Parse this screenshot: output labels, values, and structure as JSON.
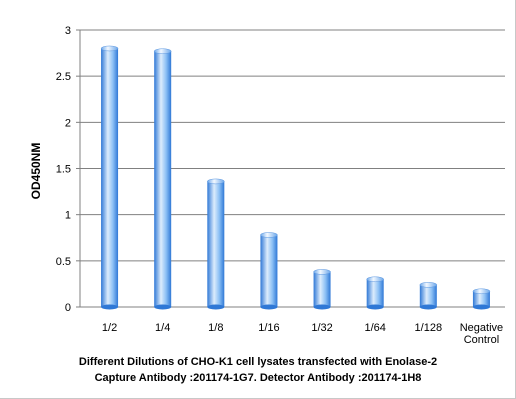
{
  "chart_data": {
    "type": "bar",
    "categories": [
      "1/2",
      "1/4",
      "1/8",
      "1/16",
      "1/32",
      "1/64",
      "1/128",
      "Negative Control"
    ],
    "category_lines": [
      [
        "1/2"
      ],
      [
        "1/4"
      ],
      [
        "1/8"
      ],
      [
        "1/16"
      ],
      [
        "1/32"
      ],
      [
        "1/64"
      ],
      [
        "1/128"
      ],
      [
        "Negative",
        "Control"
      ]
    ],
    "values": [
      2.8,
      2.77,
      1.36,
      0.78,
      0.38,
      0.3,
      0.24,
      0.17
    ],
    "ylabel": "OD450NM",
    "ylim": [
      0,
      3
    ],
    "yticks": [
      "0",
      "0.5",
      "1",
      "1.5",
      "2",
      "2.5",
      "3"
    ],
    "grid": "horizontal",
    "caption_line1": "Different Dilutions of CHO-K1  cell lysates transfected with Enolase-2",
    "caption_line2": "Capture Antibody :201174-1G7.   Detector Antibody :201174-1H8",
    "colors": {
      "bar_light": "#dcecfc",
      "bar_mid": "#8cc0f5",
      "bar_dark": "#2f78d6",
      "grid": "#808080"
    }
  }
}
